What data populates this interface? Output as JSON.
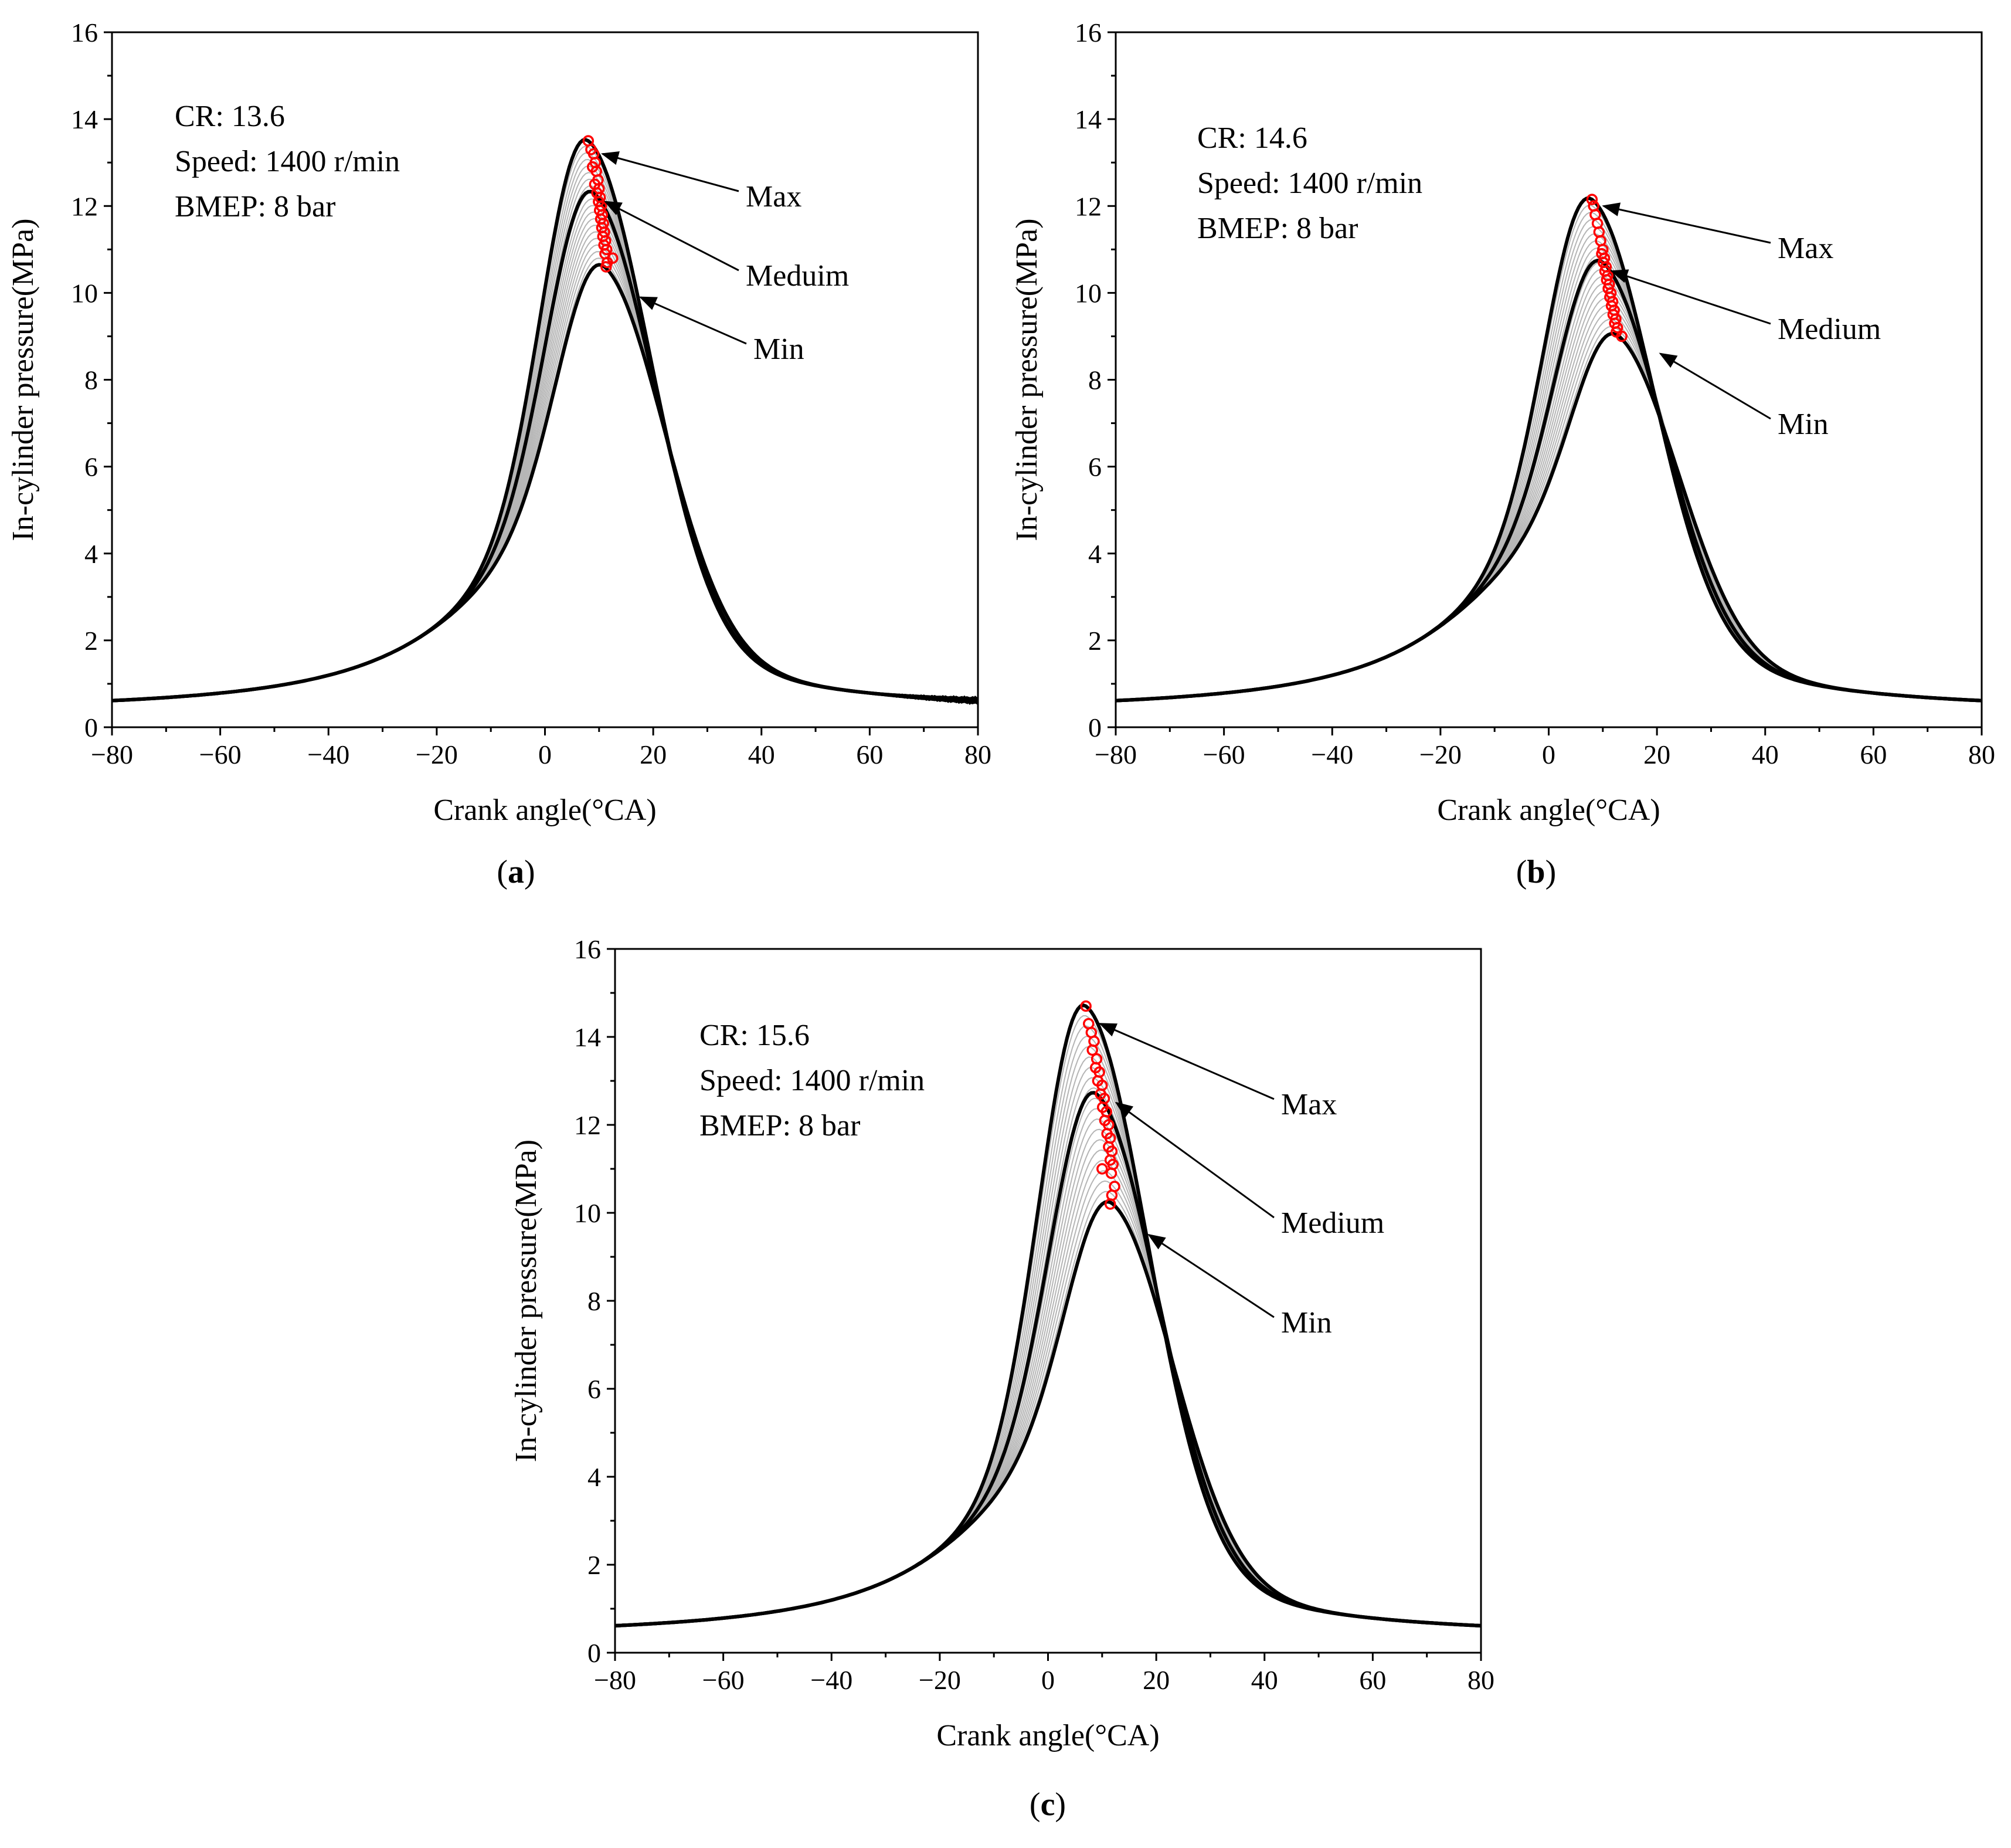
{
  "figure": {
    "panel_labels": [
      "(a)",
      "(b)",
      "(c)"
    ]
  },
  "chart_data": [
    {
      "type": "line",
      "panel": "a",
      "panel_label_parts": [
        "(",
        "a",
        ")"
      ],
      "xlabel": "Crank angle(°CA)",
      "ylabel": "In-cylinder pressure(MPa)",
      "xlim": [
        -80,
        80
      ],
      "ylim": [
        0,
        16
      ],
      "xticks": [
        -80,
        -60,
        -40,
        -20,
        0,
        20,
        40,
        60,
        80
      ],
      "xtick_labels": [
        "−80",
        "−60",
        "−40",
        "−20",
        "0",
        "20",
        "40",
        "60",
        "80"
      ],
      "yticks": [
        0,
        2,
        4,
        6,
        8,
        10,
        12,
        14,
        16
      ],
      "ytick_labels": [
        "0",
        "2",
        "4",
        "6",
        "8",
        "10",
        "12",
        "14",
        "16"
      ],
      "info_lines": [
        "CR: 13.6",
        "Speed: 1400 r/min",
        "BMEP: 8 bar"
      ],
      "series": [
        {
          "name": "Max",
          "peak_angle": 8,
          "peak_pressure": 13.5
        },
        {
          "name": "Meduim",
          "peak_angle": 9,
          "peak_pressure": 12.3
        },
        {
          "name": "Min",
          "peak_angle": 11,
          "peak_pressure": 10.6
        }
      ],
      "annotations": [
        {
          "text": "Max",
          "arrow_to": [
            10,
            13.2
          ]
        },
        {
          "text": "Meduim",
          "arrow_to": [
            10.5,
            12.1
          ]
        },
        {
          "text": "Min",
          "arrow_to": [
            17,
            9.9
          ]
        }
      ],
      "cycle_count": 20,
      "tail_noise": true,
      "peak_points": [
        [
          8,
          13.5
        ],
        [
          8.5,
          13.3
        ],
        [
          9,
          13.2
        ],
        [
          9.3,
          13.0
        ],
        [
          8.8,
          12.9
        ],
        [
          9.5,
          12.8
        ],
        [
          9.8,
          12.6
        ],
        [
          9.2,
          12.5
        ],
        [
          10,
          12.4
        ],
        [
          9.6,
          12.3
        ],
        [
          10.2,
          12.2
        ],
        [
          9.9,
          12.1
        ],
        [
          10.4,
          12.0
        ],
        [
          10.1,
          11.9
        ],
        [
          10.6,
          11.8
        ],
        [
          10.3,
          11.7
        ],
        [
          10.8,
          11.6
        ],
        [
          10.5,
          11.5
        ],
        [
          11,
          11.4
        ],
        [
          10.7,
          11.3
        ],
        [
          11.2,
          11.2
        ],
        [
          10.9,
          11.1
        ],
        [
          11.4,
          11.0
        ],
        [
          11.1,
          10.9
        ],
        [
          12.5,
          10.8
        ],
        [
          11.5,
          10.7
        ],
        [
          11.3,
          10.6
        ]
      ]
    },
    {
      "type": "line",
      "panel": "b",
      "panel_label_parts": [
        "(",
        "b",
        ")"
      ],
      "xlabel": "Crank angle(°CA)",
      "ylabel": "In-cylinder pressure(MPa)",
      "xlim": [
        -80,
        80
      ],
      "ylim": [
        0,
        16
      ],
      "xticks": [
        -80,
        -60,
        -40,
        -20,
        0,
        20,
        40,
        60,
        80
      ],
      "xtick_labels": [
        "−80",
        "−60",
        "−40",
        "−20",
        "0",
        "20",
        "40",
        "60",
        "80"
      ],
      "yticks": [
        0,
        2,
        4,
        6,
        8,
        10,
        12,
        14,
        16
      ],
      "ytick_labels": [
        "0",
        "2",
        "4",
        "6",
        "8",
        "10",
        "12",
        "14",
        "16"
      ],
      "info_lines": [
        "CR: 14.6",
        "Speed: 1400 r/min",
        "BMEP: 8 bar"
      ],
      "series": [
        {
          "name": "Max",
          "peak_angle": 8,
          "peak_pressure": 12.15
        },
        {
          "name": "Medium",
          "peak_angle": 10,
          "peak_pressure": 10.7
        },
        {
          "name": "Min",
          "peak_angle": 13,
          "peak_pressure": 9.0
        }
      ],
      "annotations": [
        {
          "text": "Max",
          "arrow_to": [
            9.5,
            12.0
          ]
        },
        {
          "text": "Medium",
          "arrow_to": [
            11,
            10.5
          ]
        },
        {
          "text": "Min",
          "arrow_to": [
            20,
            8.6
          ]
        }
      ],
      "cycle_count": 20,
      "tail_noise": false,
      "peak_points": [
        [
          8,
          12.15
        ],
        [
          8.3,
          12.0
        ],
        [
          8.6,
          11.8
        ],
        [
          9,
          11.6
        ],
        [
          9.3,
          11.4
        ],
        [
          9.6,
          11.2
        ],
        [
          10,
          11.0
        ],
        [
          9.8,
          10.9
        ],
        [
          10.3,
          10.8
        ],
        [
          10.1,
          10.7
        ],
        [
          10.6,
          10.6
        ],
        [
          10.4,
          10.5
        ],
        [
          10.9,
          10.4
        ],
        [
          10.7,
          10.3
        ],
        [
          11.2,
          10.2
        ],
        [
          11,
          10.1
        ],
        [
          11.5,
          10.0
        ],
        [
          11.3,
          9.9
        ],
        [
          11.8,
          9.8
        ],
        [
          11.6,
          9.7
        ],
        [
          12.1,
          9.6
        ],
        [
          11.9,
          9.5
        ],
        [
          12.4,
          9.4
        ],
        [
          12.2,
          9.3
        ],
        [
          12.7,
          9.2
        ],
        [
          12.5,
          9.1
        ],
        [
          13.5,
          9.0
        ]
      ]
    },
    {
      "type": "line",
      "panel": "c",
      "panel_label_parts": [
        "(",
        "c",
        ")"
      ],
      "xlabel": "Crank angle(°CA)",
      "ylabel": "In-cylinder pressure(MPa)",
      "xlim": [
        -80,
        80
      ],
      "ylim": [
        0,
        16
      ],
      "xticks": [
        -80,
        -60,
        -40,
        -20,
        0,
        20,
        40,
        60,
        80
      ],
      "xtick_labels": [
        "−80",
        "−60",
        "−40",
        "−20",
        "0",
        "20",
        "40",
        "60",
        "80"
      ],
      "yticks": [
        0,
        2,
        4,
        6,
        8,
        10,
        12,
        14,
        16
      ],
      "ytick_labels": [
        "0",
        "2",
        "4",
        "6",
        "8",
        "10",
        "12",
        "14",
        "16"
      ],
      "info_lines": [
        "CR: 15.6",
        "Speed: 1400 r/min",
        "BMEP: 8 bar"
      ],
      "series": [
        {
          "name": "Max",
          "peak_angle": 7,
          "peak_pressure": 14.7
        },
        {
          "name": "Medium",
          "peak_angle": 9,
          "peak_pressure": 12.7
        },
        {
          "name": "Min",
          "peak_angle": 12,
          "peak_pressure": 10.2
        }
      ],
      "annotations": [
        {
          "text": "Max",
          "arrow_to": [
            9,
            14.3
          ]
        },
        {
          "text": "Medium",
          "arrow_to": [
            12,
            12.5
          ]
        },
        {
          "text": "Min",
          "arrow_to": [
            18,
            9.5
          ]
        }
      ],
      "cycle_count": 20,
      "tail_noise": false,
      "peak_points": [
        [
          7,
          14.7
        ],
        [
          7.5,
          14.3
        ],
        [
          8,
          14.1
        ],
        [
          8.5,
          13.9
        ],
        [
          8.2,
          13.7
        ],
        [
          9,
          13.5
        ],
        [
          8.8,
          13.3
        ],
        [
          9.5,
          13.2
        ],
        [
          9.2,
          13.0
        ],
        [
          10,
          12.9
        ],
        [
          9.7,
          12.7
        ],
        [
          10.4,
          12.6
        ],
        [
          10.1,
          12.4
        ],
        [
          10.8,
          12.3
        ],
        [
          10.5,
          12.1
        ],
        [
          11.2,
          12.0
        ],
        [
          10.9,
          11.8
        ],
        [
          11.5,
          11.7
        ],
        [
          11.2,
          11.5
        ],
        [
          11.8,
          11.4
        ],
        [
          11.5,
          11.2
        ],
        [
          12,
          11.1
        ],
        [
          10,
          11.0
        ],
        [
          11.7,
          10.9
        ],
        [
          12.3,
          10.6
        ],
        [
          11.8,
          10.4
        ],
        [
          11.5,
          10.2
        ]
      ]
    }
  ]
}
